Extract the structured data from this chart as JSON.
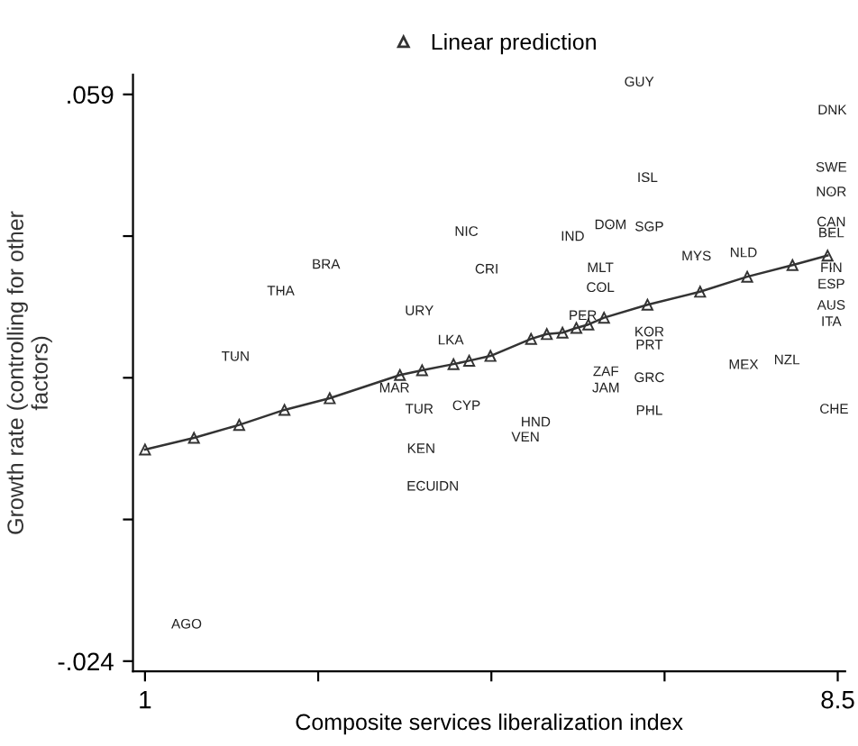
{
  "chart_data": {
    "type": "scatter",
    "xlabel": "Composite services liberalization index",
    "ylabel": "Growth rate (controlling for other\nfactors)",
    "xlim": [
      0.87,
      8.58
    ],
    "ylim": [
      -0.0255,
      0.0619
    ],
    "xticks": [
      1,
      {
        "value": 2.875,
        "label": null
      },
      {
        "value": 4.75,
        "label": null
      },
      {
        "value": 6.625,
        "label": null
      },
      8.5
    ],
    "yticks": [
      {
        "value": 0.059,
        "label": ".059"
      },
      {
        "value": 0.03825,
        "label": null
      },
      {
        "value": 0.0175,
        "label": null
      },
      {
        "value": -0.00325,
        "label": null
      },
      {
        "value": -0.024,
        "label": "-.024"
      }
    ],
    "grid": false,
    "legend": "top",
    "series": [
      {
        "color": "#222222",
        "marker": "none",
        "x": [
          6.35,
          8.44,
          6.44,
          8.43,
          8.43,
          8.43,
          8.43,
          8.43,
          8.43,
          8.43,
          8.43,
          8.46,
          7.48,
          6.97,
          6.04,
          5.63,
          6.46,
          5.93,
          5.93,
          5.74,
          6.46,
          6.46,
          5.99,
          5.99,
          6.46,
          6.46,
          7.48,
          7.95,
          5.23,
          5.12,
          4.48,
          4.7,
          2.96,
          2.47,
          3.97,
          4.31,
          1.98,
          3.7,
          3.97,
          4.48,
          3.99,
          3.99,
          4.27,
          1.45
        ],
        "values": [
          0.0607,
          0.0566,
          0.0467,
          0.0482,
          0.0446,
          0.0402,
          0.0386,
          0.0335,
          0.0311,
          0.028,
          0.0256,
          0.0128,
          0.0357,
          0.0352,
          0.0398,
          0.0381,
          0.0395,
          0.0335,
          0.0306,
          0.0265,
          0.0241,
          0.0222,
          0.0183,
          0.0159,
          0.0174,
          0.0126,
          0.0193,
          0.02,
          0.0109,
          0.0087,
          0.0388,
          0.0333,
          0.034,
          0.0301,
          0.0272,
          0.0229,
          0.0205,
          0.0159,
          0.0128,
          0.0133,
          0.007,
          0.0015,
          0.0015,
          -0.0187
        ],
        "value_labels": [
          "GUY",
          "DNK",
          "ISL",
          "SWE",
          "NOR",
          "CAN",
          "BEL",
          "FIN",
          "ESP",
          "AUS",
          "ITA",
          "CHE",
          "NLD",
          "MYS",
          "DOM",
          "IND",
          "SGP",
          "MLT",
          "COL",
          "PER",
          "KOR",
          "PRT",
          "ZAF",
          "JAM",
          "GRC",
          "PHL",
          "MEX",
          "NZL",
          "HND",
          "VEN",
          "NIC",
          "CRI",
          "BRA",
          "THA",
          "URY",
          "LKA",
          "TUN",
          "MAR",
          "TUR",
          "CYP",
          "KEN",
          "ECU",
          "IDN",
          "AGO"
        ]
      },
      {
        "name": "Linear prediction",
        "type": "line",
        "marker": "triangle",
        "color": "#333333",
        "x": [
          1.0,
          1.53,
          2.02,
          2.51,
          3.0,
          3.76,
          4.0,
          4.34,
          4.51,
          4.74,
          5.18,
          5.35,
          5.52,
          5.67,
          5.8,
          5.97,
          6.44,
          7.01,
          7.52,
          8.01,
          8.39
        ],
        "values": [
          0.007,
          0.0087,
          0.0106,
          0.0128,
          0.0145,
          0.0179,
          0.0186,
          0.0195,
          0.02,
          0.0207,
          0.0232,
          0.0239,
          0.0241,
          0.0248,
          0.0253,
          0.0263,
          0.0282,
          0.0301,
          0.0323,
          0.034,
          0.0354
        ]
      }
    ]
  }
}
